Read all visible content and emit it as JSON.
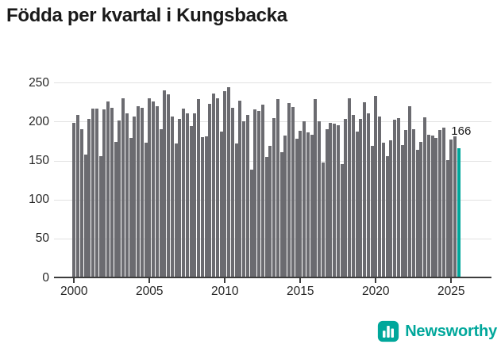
{
  "title": "Födda per kvartal i Kungsbacka",
  "chart_data": {
    "type": "bar",
    "title": "Födda per kvartal i Kungsbacka",
    "x_unit": "quarter",
    "start_period": "2000 Q1",
    "end_period": "2025 Q3",
    "values": [
      198,
      209,
      190,
      158,
      204,
      217,
      217,
      156,
      216,
      226,
      218,
      174,
      202,
      230,
      211,
      179,
      207,
      220,
      218,
      173,
      230,
      226,
      220,
      190,
      240,
      235,
      207,
      172,
      204,
      217,
      211,
      194,
      211,
      229,
      180,
      181,
      223,
      236,
      230,
      187,
      239,
      244,
      218,
      172,
      227,
      201,
      209,
      138,
      216,
      214,
      222,
      155,
      169,
      205,
      229,
      161,
      182,
      224,
      219,
      178,
      188,
      201,
      186,
      183,
      229,
      201,
      148,
      190,
      198,
      197,
      195,
      146,
      204,
      230,
      209,
      187,
      204,
      225,
      211,
      169,
      233,
      207,
      173,
      156,
      176,
      203,
      205,
      170,
      189,
      220,
      190,
      164,
      174,
      206,
      183,
      182,
      179,
      189,
      192,
      151,
      177,
      181,
      166
    ],
    "bar_color": "#6B6B70",
    "highlight": {
      "index": 102,
      "value": 166,
      "label": "166",
      "color": "#00A79B"
    },
    "ylim": [
      0,
      250
    ],
    "yticks": [
      0,
      50,
      100,
      150,
      200,
      250
    ],
    "xticks": [
      2000,
      2005,
      2010,
      2015,
      2020,
      2025
    ],
    "grid": true,
    "legend": "none"
  },
  "annotation": {
    "text": "166"
  },
  "footer": {
    "brand": "Newsworthy",
    "brand_color": "#00A79B"
  }
}
